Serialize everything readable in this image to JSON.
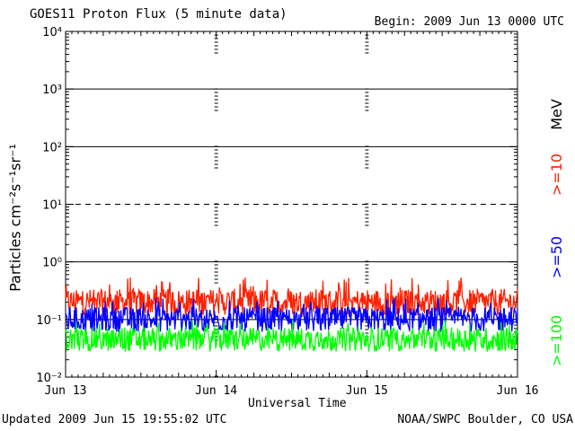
{
  "header": {
    "title": "GOES11 Proton Flux (5 minute data)",
    "begin": "Begin: 2009 Jun 13 0000 UTC"
  },
  "footer": {
    "updated": "Updated 2009 Jun 15 19:55:02 UTC",
    "credit": "NOAA/SWPC Boulder, CO USA"
  },
  "chart_data": {
    "type": "line",
    "title": "GOES11 Proton Flux (5 minute data)",
    "xlabel": "Universal Time",
    "ylabel": "Particles cm⁻²s⁻¹sr⁻¹",
    "yscale": "log",
    "ylim": [
      0.01,
      10000
    ],
    "xlim": [
      "2009-06-13 00:00",
      "2009-06-16 00:00"
    ],
    "xticks": [
      "Jun 13",
      "Jun 14",
      "Jun 15",
      "Jun 16"
    ],
    "yticks": [
      "10⁻²",
      "10⁻¹",
      "10⁰",
      "10¹",
      "10²",
      "10³",
      "10⁴"
    ],
    "right_labels": {
      "unit": "MeV",
      "s1": ">=10",
      "s2": ">=50",
      "s3": ">=100"
    },
    "series": [
      {
        "name": ">=10 MeV",
        "color": "#ff2000",
        "baseline": 0.2,
        "min": 0.12,
        "max": 0.55
      },
      {
        "name": ">=50 MeV",
        "color": "#0000ff",
        "baseline": 0.1,
        "min": 0.06,
        "max": 0.25
      },
      {
        "name": ">=100 MeV",
        "color": "#00ff00",
        "baseline": 0.045,
        "min": 0.025,
        "max": 0.1
      }
    ],
    "reference_lines": [
      {
        "y": 10,
        "style": "dashed"
      }
    ],
    "grid": true
  }
}
